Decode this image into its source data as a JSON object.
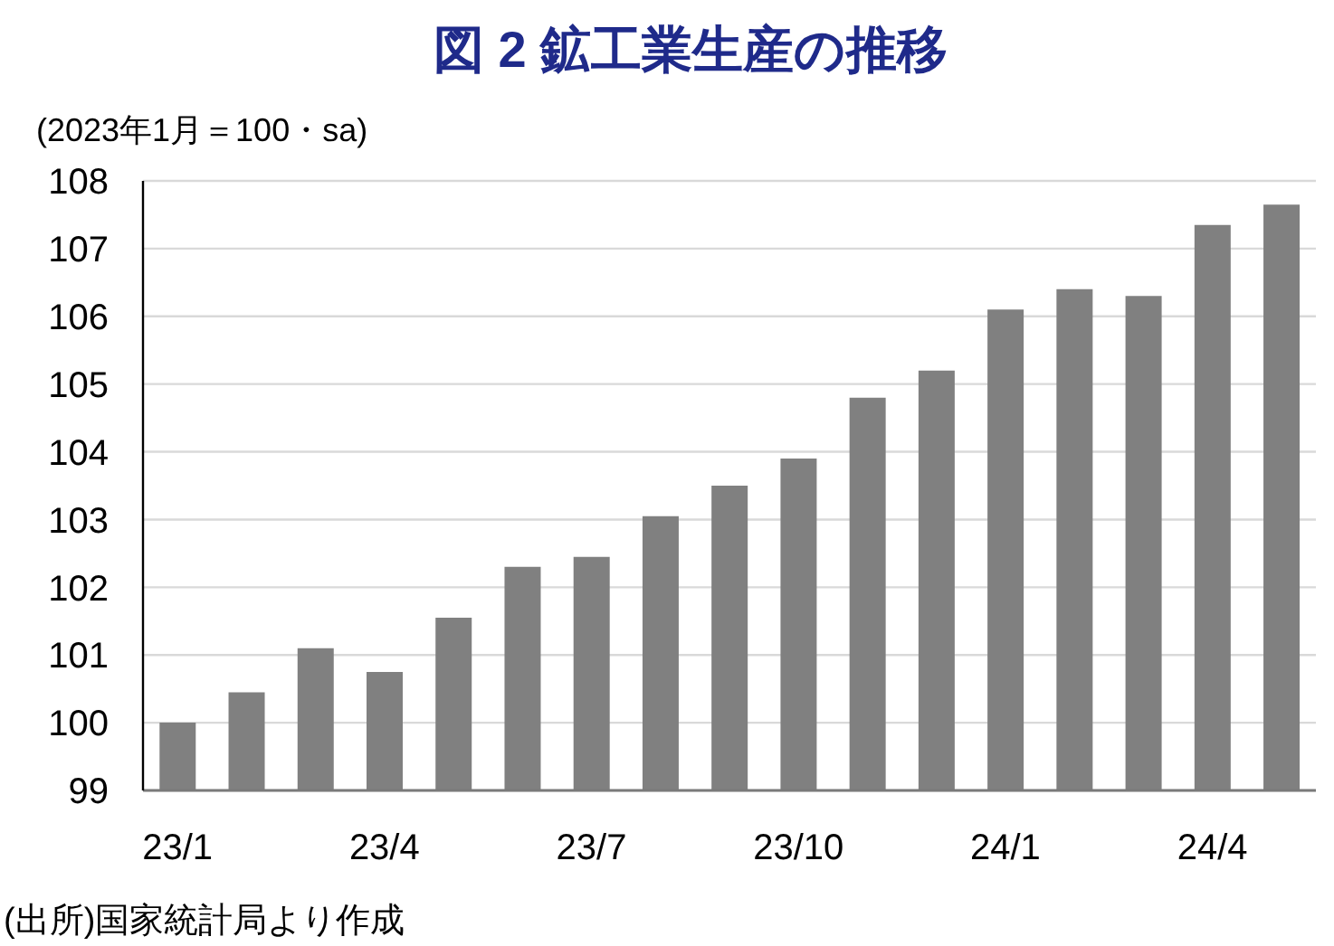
{
  "chart_data": {
    "type": "bar",
    "title": "図 2 鉱工業生産の推移",
    "ylabel": "(2023年1月＝100・sa)",
    "annotations": [
      "(出所)国家統計局より作成"
    ],
    "categories": [
      "23/1",
      null,
      null,
      "23/4",
      null,
      null,
      "23/7",
      null,
      null,
      "23/10",
      null,
      null,
      "24/1",
      null,
      null,
      "24/4",
      null
    ],
    "values": [
      100.0,
      100.45,
      101.1,
      100.75,
      101.55,
      102.3,
      102.45,
      103.05,
      103.5,
      103.9,
      104.8,
      105.2,
      106.1,
      106.4,
      106.3,
      107.35,
      107.65
    ],
    "color": "#808080",
    "ylim": [
      99,
      108
    ],
    "yticks": [
      99,
      100,
      101,
      102,
      103,
      104,
      105,
      106,
      107,
      108
    ],
    "grid": "y"
  }
}
